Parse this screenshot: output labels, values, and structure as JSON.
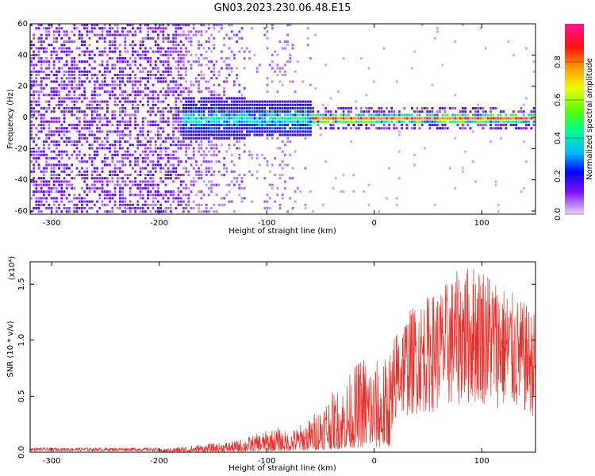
{
  "title": "GN03.2023.230.06.48.E15",
  "chart_data": [
    {
      "type": "heatmap",
      "xlabel": "Height of straight line (km)",
      "ylabel": "Frequency (Hz)",
      "xlim": [
        -320,
        150
      ],
      "ylim": [
        -62,
        60
      ],
      "xticks": [
        -300,
        -200,
        -100,
        0,
        100
      ],
      "yticks": [
        60,
        40,
        20,
        0,
        -20,
        -40,
        -60
      ],
      "colorbar": {
        "label": "Normalized spectral amplitude",
        "ticks": [
          0.0,
          0.2,
          0.4,
          0.6,
          0.8
        ],
        "range": [
          0,
          1
        ],
        "colors": [
          "#e6d4f7",
          "#6a00ff",
          "#0000ff",
          "#00c8ff",
          "#00ff80",
          "#80ff00",
          "#ffff00",
          "#ff8000",
          "#ff0000",
          "#ff1493"
        ]
      },
      "regions": [
        {
          "x": [
            -320,
            -180
          ],
          "description_level": 0.2
        },
        {
          "x": [
            -180,
            -60
          ],
          "band_hz": [
            -15,
            15
          ],
          "level": 0.4
        },
        {
          "x": [
            -60,
            150
          ],
          "band_hz": [
            -3,
            3
          ],
          "level": 0.8
        }
      ]
    },
    {
      "type": "line",
      "xlabel": "Height of straight line (km)",
      "ylabel": "SNR (10 * v/v)",
      "y_exponent": "(x10⁴)",
      "xlim": [
        -320,
        150
      ],
      "ylim": [
        0,
        1.7
      ],
      "xticks": [
        -300,
        -200,
        -100,
        0,
        100
      ],
      "yticks": [
        0.0,
        0.5,
        1.0,
        1.5
      ],
      "series": [
        {
          "color": "#e8302a",
          "envelope_x": [
            -320,
            -250,
            -200,
            -170,
            -150,
            -130,
            -110,
            -100,
            -90,
            -80,
            -60,
            -45,
            -30,
            -10,
            0,
            10,
            20,
            30,
            40,
            60,
            80,
            100,
            120,
            150
          ],
          "envelope_y": [
            0.03,
            0.03,
            0.03,
            0.06,
            0.08,
            0.1,
            0.16,
            0.2,
            0.22,
            0.18,
            0.3,
            0.5,
            0.6,
            0.9,
            0.82,
            0.85,
            1.1,
            1.25,
            1.35,
            1.45,
            1.65,
            1.7,
            1.5,
            1.25
          ]
        }
      ]
    }
  ]
}
